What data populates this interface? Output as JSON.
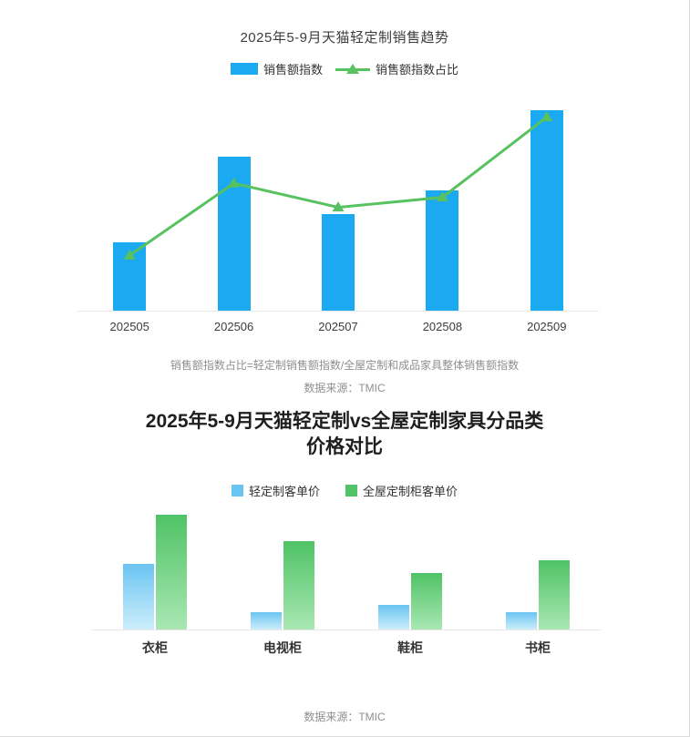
{
  "chart1": {
    "title": "2025年5-9月天猫轻定制销售趋势",
    "footnote": "销售额指数占比=轻定制销售额指数/全屋定制和成品家具整体销售额指数",
    "source": "数据来源：TMIC"
  },
  "chart2": {
    "title_line1": "2025年5-9月天猫轻定制vs全屋定制家具分品类",
    "title_line2": "价格对比",
    "source": "数据来源：TMIC"
  },
  "chart_data": [
    {
      "type": "bar+line",
      "title": "2025年5-9月天猫轻定制销售趋势",
      "categories": [
        "202505",
        "202506",
        "202507",
        "202508",
        "202509"
      ],
      "series": [
        {
          "name": "销售额指数",
          "type": "bar",
          "color": "#1ba9f1",
          "values": [
            34,
            77,
            48,
            60,
            100
          ]
        },
        {
          "name": "销售额指数占比",
          "type": "line",
          "color": "#57c25f",
          "marker": "triangle-up",
          "values": [
            28,
            64,
            52,
            57,
            97
          ]
        }
      ],
      "ylim": [
        0,
        110
      ],
      "grid": false,
      "legend_position": "top",
      "value_scale": "relative-index"
    },
    {
      "type": "bar",
      "title": "2025年5-9月天猫轻定制vs全屋定制家具分品类价格对比",
      "categories": [
        "衣柜",
        "电视柜",
        "鞋柜",
        "书柜"
      ],
      "series": [
        {
          "name": "轻定制客单价",
          "type": "bar",
          "color_top": "#6ac4f2",
          "color_bottom": "#cdeefb",
          "values": [
            57,
            15,
            21,
            15
          ]
        },
        {
          "name": "全屋定制柜客单价",
          "type": "bar",
          "color_top": "#4fc365",
          "color_bottom": "#a9e7b3",
          "values": [
            100,
            77,
            49,
            60
          ]
        }
      ],
      "ylim": [
        0,
        110
      ],
      "grid": false,
      "legend_position": "top",
      "value_scale": "relative-index"
    }
  ]
}
